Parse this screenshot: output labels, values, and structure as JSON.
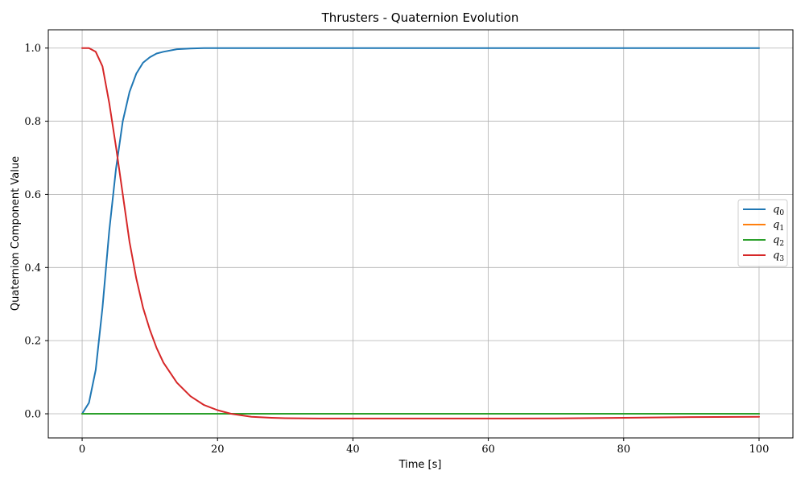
{
  "chart_data": {
    "type": "line",
    "title": "Thrusters - Quaternion Evolution",
    "xlabel": "Time [s]",
    "ylabel": "Quaternion Component Value",
    "xlim": [
      -5,
      105
    ],
    "ylim": [
      -0.066,
      1.05
    ],
    "xticks": [
      0,
      20,
      40,
      60,
      80,
      100
    ],
    "yticks": [
      0.0,
      0.2,
      0.4,
      0.6,
      0.8,
      1.0
    ],
    "xtick_labels": [
      "0",
      "20",
      "40",
      "60",
      "80",
      "100"
    ],
    "ytick_labels": [
      "0.0",
      "0.2",
      "0.4",
      "0.6",
      "0.8",
      "1.0"
    ],
    "grid": true,
    "legend_position": "center-right",
    "x": [
      0,
      1,
      2,
      3,
      4,
      5,
      6,
      7,
      8,
      9,
      10,
      11,
      12,
      14,
      16,
      18,
      20,
      22,
      25,
      28,
      30,
      35,
      40,
      50,
      60,
      70,
      80,
      90,
      100
    ],
    "series": [
      {
        "name": "q0",
        "color": "#1f77b4",
        "values": [
          0.0,
          0.03,
          0.12,
          0.29,
          0.5,
          0.67,
          0.8,
          0.88,
          0.93,
          0.96,
          0.975,
          0.985,
          0.99,
          0.997,
          0.999,
          1.0,
          1.0,
          1.0,
          1.0,
          1.0,
          1.0,
          1.0,
          1.0,
          1.0,
          1.0,
          1.0,
          1.0,
          1.0,
          1.0
        ]
      },
      {
        "name": "q1",
        "color": "#ff7f0e",
        "values": [
          0,
          0,
          0,
          0,
          0,
          0,
          0,
          0,
          0,
          0,
          0,
          0,
          0,
          0,
          0,
          0,
          0,
          0,
          0,
          0,
          0,
          0,
          0,
          0,
          0,
          0,
          0,
          0,
          0
        ]
      },
      {
        "name": "q2",
        "color": "#2ca02c",
        "values": [
          0,
          0,
          0,
          0,
          0,
          0,
          0,
          0,
          0,
          0,
          0,
          0,
          0,
          0,
          0,
          0,
          0,
          0,
          0,
          0,
          0,
          0,
          0,
          0,
          0,
          0,
          0,
          0,
          0
        ]
      },
      {
        "name": "q3",
        "color": "#d62728",
        "values": [
          1.0,
          1.0,
          0.99,
          0.95,
          0.85,
          0.73,
          0.6,
          0.47,
          0.37,
          0.29,
          0.23,
          0.18,
          0.14,
          0.085,
          0.048,
          0.024,
          0.01,
          0.0,
          -0.008,
          -0.011,
          -0.012,
          -0.013,
          -0.013,
          -0.013,
          -0.013,
          -0.0125,
          -0.011,
          -0.009,
          -0.008
        ]
      }
    ]
  }
}
